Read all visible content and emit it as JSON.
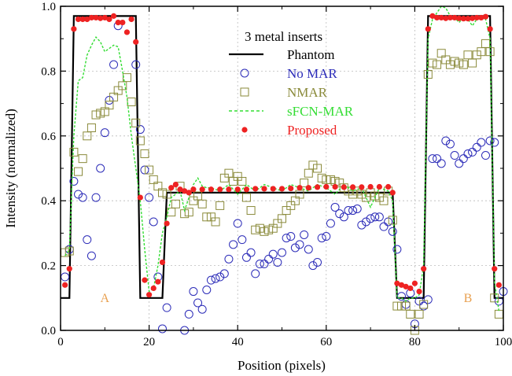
{
  "chart_data": {
    "type": "line",
    "title": "",
    "xlabel": "Position (pixels)",
    "ylabel": "Intensity (normalized)",
    "xlim": [
      0,
      100
    ],
    "ylim": [
      0,
      1.0
    ],
    "xticks": [
      "0",
      "20",
      "40",
      "60",
      "80",
      "100"
    ],
    "yticks": [
      "0.0",
      "0.2",
      "0.4",
      "0.6",
      "0.8",
      "1.0"
    ],
    "grid": true,
    "legend_title": "3 metal inserts",
    "legend_position": "top-center",
    "annotations": [
      {
        "text": "A",
        "x": 10,
        "y": 0.1,
        "color": "#e8a050"
      },
      {
        "text": "B",
        "x": 92,
        "y": 0.1,
        "color": "#e8a050"
      }
    ],
    "series": [
      {
        "name": "Phantom",
        "style": "line",
        "color": "#000000",
        "x": [
          0,
          2,
          3,
          17,
          18,
          23,
          24,
          75,
          76,
          82,
          83,
          97,
          98,
          100
        ],
        "y": [
          0.1,
          0.1,
          0.97,
          0.97,
          0.1,
          0.1,
          0.425,
          0.425,
          0.1,
          0.1,
          0.97,
          0.97,
          0.1,
          0.1
        ]
      },
      {
        "name": "No MAR",
        "style": "open-circle",
        "color": "#2b2bb8",
        "x": [
          1,
          2,
          3,
          4,
          5,
          6,
          7,
          8,
          9,
          10,
          11,
          12,
          13,
          17,
          18,
          19,
          20,
          21,
          22,
          23,
          24,
          28,
          29,
          30,
          31,
          32,
          33,
          34,
          35,
          36,
          37,
          38,
          39,
          40,
          41,
          42,
          43,
          44,
          45,
          46,
          47,
          48,
          49,
          50,
          51,
          52,
          53,
          54,
          55,
          56,
          57,
          58,
          59,
          60,
          61,
          62,
          63,
          64,
          65,
          66,
          67,
          68,
          69,
          70,
          71,
          72,
          73,
          74,
          75,
          76,
          77,
          78,
          79,
          80,
          81,
          82,
          83,
          84,
          85,
          86,
          87,
          88,
          89,
          90,
          91,
          92,
          93,
          94,
          95,
          96,
          97,
          98,
          99,
          100
        ],
        "y": [
          0.165,
          0.25,
          0.46,
          0.42,
          0.41,
          0.28,
          0.23,
          0.41,
          0.5,
          0.61,
          0.71,
          0.82,
          0.94,
          0.82,
          0.62,
          0.495,
          0.41,
          0.335,
          0.165,
          0.005,
          0.07,
          0.0,
          0.05,
          0.12,
          0.085,
          0.065,
          0.125,
          0.155,
          0.16,
          0.165,
          0.175,
          0.22,
          0.265,
          0.33,
          0.28,
          0.225,
          0.24,
          0.175,
          0.205,
          0.205,
          0.22,
          0.235,
          0.21,
          0.24,
          0.285,
          0.29,
          0.255,
          0.265,
          0.295,
          0.25,
          0.2,
          0.21,
          0.285,
          0.29,
          0.33,
          0.38,
          0.36,
          0.35,
          0.37,
          0.37,
          0.375,
          0.325,
          0.335,
          0.345,
          0.35,
          0.35,
          0.32,
          0.335,
          0.305,
          0.25,
          0.105,
          0.08,
          0.115,
          0.02,
          0.09,
          0.075,
          0.095,
          0.53,
          0.53,
          0.515,
          0.585,
          0.575,
          0.54,
          0.515,
          0.53,
          0.545,
          0.55,
          0.565,
          0.58,
          0.54,
          0.585,
          0.58,
          0.09,
          0.12
        ]
      },
      {
        "name": "NMAR",
        "style": "open-square",
        "color": "#8a8a3a",
        "x": [
          1,
          2,
          3,
          4,
          5,
          6,
          7,
          8,
          9,
          10,
          11,
          12,
          13,
          14,
          15,
          16,
          17,
          18,
          19,
          20,
          21,
          22,
          23,
          24,
          25,
          26,
          27,
          28,
          29,
          30,
          31,
          32,
          33,
          34,
          35,
          36,
          37,
          38,
          39,
          40,
          41,
          42,
          43,
          44,
          45,
          46,
          47,
          48,
          49,
          50,
          51,
          52,
          53,
          54,
          55,
          56,
          57,
          58,
          59,
          60,
          61,
          62,
          63,
          64,
          65,
          66,
          67,
          68,
          69,
          70,
          71,
          72,
          73,
          74,
          75,
          76,
          77,
          78,
          79,
          80,
          81,
          82,
          83,
          84,
          85,
          86,
          87,
          88,
          89,
          90,
          91,
          92,
          93,
          94,
          95,
          96,
          97,
          98,
          99
        ],
        "y": [
          0.24,
          0.245,
          0.55,
          0.49,
          0.53,
          0.6,
          0.625,
          0.665,
          0.67,
          0.675,
          0.695,
          0.72,
          0.74,
          0.755,
          0.78,
          0.705,
          0.64,
          0.585,
          0.545,
          0.495,
          0.465,
          0.445,
          0.425,
          0.42,
          0.365,
          0.39,
          0.445,
          0.36,
          0.365,
          0.4,
          0.415,
          0.39,
          0.35,
          0.35,
          0.335,
          0.385,
          0.47,
          0.485,
          0.46,
          0.475,
          0.46,
          0.41,
          0.37,
          0.31,
          0.315,
          0.305,
          0.31,
          0.315,
          0.33,
          0.345,
          0.37,
          0.385,
          0.4,
          0.42,
          0.455,
          0.485,
          0.51,
          0.5,
          0.47,
          0.465,
          0.465,
          0.46,
          0.455,
          0.44,
          0.43,
          0.42,
          0.43,
          0.42,
          0.41,
          0.425,
          0.415,
          0.41,
          0.4,
          0.43,
          0.34,
          0.075,
          0.075,
          0.075,
          0.05,
          0.0,
          0.05,
          0.08,
          0.79,
          0.825,
          0.82,
          0.855,
          0.835,
          0.82,
          0.83,
          0.825,
          0.82,
          0.85,
          0.825,
          0.85,
          0.86,
          0.885,
          0.86,
          0.1,
          0.05
        ]
      },
      {
        "name": "sFCN-MAR",
        "style": "dashed-line",
        "color": "#33dd33",
        "x": [
          1,
          2,
          3,
          4,
          5,
          6,
          7,
          8,
          9,
          10,
          11,
          12,
          13,
          14,
          15,
          16,
          17,
          18,
          19,
          20,
          21,
          22,
          23,
          24,
          25,
          26,
          27,
          28,
          29,
          30,
          31,
          32,
          33,
          34,
          36,
          38,
          40,
          42,
          44,
          46,
          48,
          50,
          52,
          54,
          56,
          58,
          60,
          62,
          64,
          66,
          68,
          70,
          72,
          74,
          75,
          76,
          77,
          78,
          79,
          80,
          81,
          82,
          83,
          84,
          85,
          86,
          87,
          88,
          89,
          90,
          91,
          92,
          93,
          94,
          95,
          96,
          97,
          98,
          99
        ],
        "y": [
          0.23,
          0.25,
          0.6,
          0.77,
          0.78,
          0.85,
          0.88,
          0.905,
          0.89,
          0.86,
          0.87,
          0.88,
          0.875,
          0.8,
          0.72,
          0.6,
          0.5,
          0.4,
          0.25,
          0.12,
          0.13,
          0.2,
          0.3,
          0.35,
          0.41,
          0.42,
          0.43,
          0.37,
          0.41,
          0.45,
          0.47,
          0.445,
          0.44,
          0.44,
          0.43,
          0.45,
          0.42,
          0.45,
          0.43,
          0.45,
          0.44,
          0.43,
          0.45,
          0.44,
          0.43,
          0.45,
          0.44,
          0.42,
          0.45,
          0.43,
          0.44,
          0.38,
          0.44,
          0.43,
          0.4,
          0.1,
          0.1,
          0.09,
          0.1,
          0.1,
          0.11,
          0.2,
          0.9,
          0.96,
          0.98,
          1.0,
          0.995,
          0.97,
          0.965,
          0.95,
          0.965,
          0.96,
          0.94,
          0.96,
          0.965,
          0.96,
          0.9,
          0.15,
          0.06
        ]
      },
      {
        "name": "Proposed",
        "style": "filled-circle",
        "color": "#ee2222",
        "x": [
          1,
          2,
          3,
          4,
          5,
          6,
          7,
          8,
          9,
          10,
          11,
          12,
          13,
          14,
          15,
          16,
          17,
          18,
          19,
          20,
          21,
          22,
          23,
          24,
          25,
          26,
          27,
          28,
          29,
          30,
          32,
          34,
          36,
          38,
          40,
          42,
          44,
          46,
          48,
          50,
          52,
          54,
          56,
          58,
          60,
          62,
          64,
          66,
          68,
          70,
          72,
          74,
          75,
          76,
          77,
          78,
          79,
          80,
          81,
          82,
          83,
          84,
          85,
          86,
          87,
          88,
          89,
          90,
          91,
          92,
          93,
          94,
          95,
          96,
          97,
          98,
          99
        ],
        "y": [
          0.14,
          0.19,
          0.93,
          0.96,
          0.96,
          0.96,
          0.965,
          0.965,
          0.963,
          0.965,
          0.96,
          0.97,
          0.95,
          0.95,
          0.92,
          0.96,
          0.89,
          0.41,
          0.155,
          0.11,
          0.13,
          0.15,
          0.21,
          0.33,
          0.44,
          0.45,
          0.435,
          0.43,
          0.425,
          0.435,
          0.435,
          0.435,
          0.435,
          0.435,
          0.435,
          0.435,
          0.437,
          0.437,
          0.437,
          0.437,
          0.438,
          0.44,
          0.44,
          0.442,
          0.443,
          0.443,
          0.442,
          0.442,
          0.442,
          0.443,
          0.443,
          0.443,
          0.425,
          0.145,
          0.14,
          0.135,
          0.13,
          0.145,
          0.12,
          0.19,
          0.93,
          0.97,
          0.965,
          0.965,
          0.963,
          0.965,
          0.965,
          0.963,
          0.962,
          0.962,
          0.963,
          0.965,
          0.965,
          0.968,
          0.93,
          0.19,
          0.14
        ]
      }
    ]
  }
}
